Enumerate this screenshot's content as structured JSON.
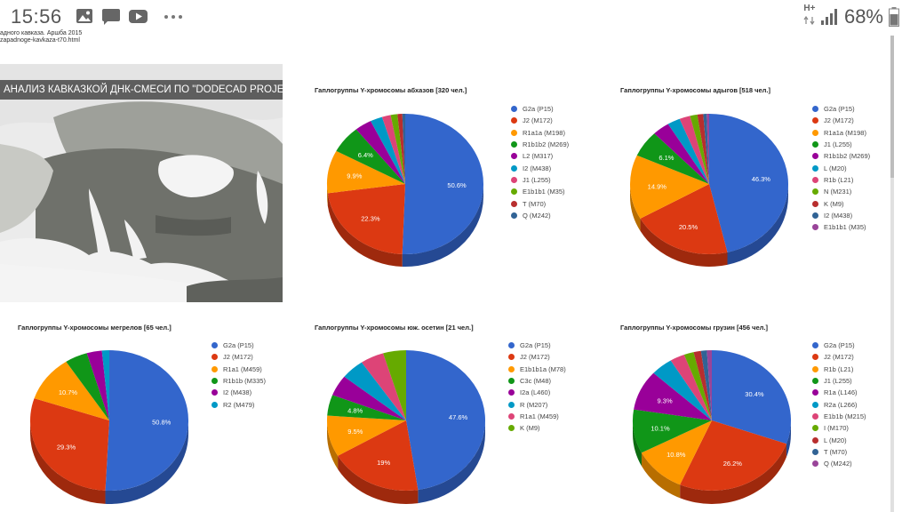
{
  "status_bar": {
    "time": "15:56",
    "network": "H+",
    "battery": "68%"
  },
  "page": {
    "url_line1": "адного кавказа. Аршба 2015",
    "url_line2": "zapadnoge-kavkaza-t70.html",
    "map_banner": "АНАЛИЗ КАВКАЗКОЙ ДНК-СМЕСИ ПО \"DODECAD PROJECT\""
  },
  "colors": [
    "#3366cc",
    "#dc3912",
    "#ff9900",
    "#109618",
    "#990099",
    "#0099c6",
    "#dd4477",
    "#66aa00",
    "#b82e2e",
    "#316395",
    "#994499"
  ],
  "chart_data": [
    {
      "type": "pie",
      "title": "Гаплогруппы Y-хромосомы абхазов [320 чел.]",
      "labels": [
        "G2a (P15)",
        "J2 (M172)",
        "R1a1a (M198)",
        "R1b1b2 (M269)",
        "L2 (M317)",
        "I2 (M438)",
        "J1 (L255)",
        "E1b1b1 (M35)",
        "T (M70)",
        "Q (M242)"
      ],
      "values": [
        50.6,
        22.3,
        9.9,
        6.4,
        3.5,
        2.5,
        1.8,
        1.4,
        1.0,
        0.6
      ],
      "shown_labels": [
        "50.6%",
        "22.3%",
        "9.9%",
        "6.4%",
        "",
        "",
        "",
        "",
        "",
        ""
      ]
    },
    {
      "type": "pie",
      "title": "Гаплогруппы Y-хромосомы адыгов [518 чел.]",
      "labels": [
        "G2a (P15)",
        "J2 (M172)",
        "R1a1a (M198)",
        "J1 (L255)",
        "R1b1b2 (M269)",
        "L (M20)",
        "R1b (L21)",
        "N (M231)",
        "K (M9)",
        "I2 (M438)",
        "E1b1b1 (M35)"
      ],
      "values": [
        46.3,
        20.5,
        14.9,
        6.1,
        3.5,
        2.6,
        2.2,
        1.5,
        1.2,
        0.7,
        0.5
      ],
      "shown_labels": [
        "46.3%",
        "20.5%",
        "14.9%",
        "6.1%",
        "",
        "",
        "",
        "",
        "",
        "",
        ""
      ]
    },
    {
      "type": "pie",
      "title": "Гаплогруппы Y-хромосомы мегрелов [65 чел.]",
      "labels": [
        "G2a (P15)",
        "J2 (M172)",
        "R1a1 (M459)",
        "R1b1b (M335)",
        "I2 (M438)",
        "R2 (M479)"
      ],
      "values": [
        50.8,
        29.3,
        10.7,
        4.6,
        3.1,
        1.5
      ],
      "shown_labels": [
        "50.8%",
        "29.3%",
        "10.7%",
        "",
        "",
        ""
      ]
    },
    {
      "type": "pie",
      "title": "Гаплогруппы Y-хромосомы юж. осетин [21 чел.]",
      "labels": [
        "G2a (P15)",
        "J2 (M172)",
        "E1b1b1a (M78)",
        "C3c (M48)",
        "I2a (L460)",
        "R (M207)",
        "R1a1 (M459)",
        "K (M9)"
      ],
      "values": [
        47.6,
        19.0,
        9.5,
        4.8,
        4.8,
        4.8,
        4.8,
        4.7
      ],
      "shown_labels": [
        "47.6%",
        "19%",
        "9.5%",
        "4.8%",
        "",
        "",
        "",
        ""
      ]
    },
    {
      "type": "pie",
      "title": "Гаплогруппы Y-хромосомы грузин [456 чел.]",
      "labels": [
        "G2a (P15)",
        "J2 (M172)",
        "R1b (L21)",
        "J1 (L255)",
        "R1a (L146)",
        "R2a (L266)",
        "E1b1b (M215)",
        "I (M170)",
        "L (M20)",
        "T (M70)",
        "Q (M242)"
      ],
      "values": [
        30.4,
        26.2,
        10.8,
        10.1,
        9.3,
        4.5,
        3.0,
        2.0,
        1.5,
        1.2,
        1.0
      ],
      "shown_labels": [
        "30.4%",
        "26.2%",
        "10.8%",
        "10.1%",
        "9.3%",
        "",
        "",
        "",
        "",
        "",
        ""
      ]
    }
  ]
}
